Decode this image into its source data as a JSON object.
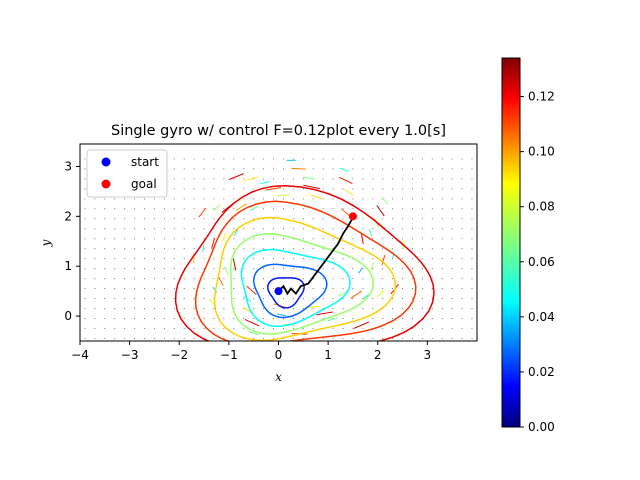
{
  "chart_data": {
    "type": "line",
    "title": "Single gyro w/ control F=0.12plot every 1.0[s]",
    "xlabel": "x",
    "ylabel": "y",
    "xlim": [
      -4,
      4
    ],
    "ylim": [
      -0.5,
      3.45
    ],
    "xticks": [
      -4,
      -3,
      -2,
      -1,
      0,
      1,
      2,
      3
    ],
    "yticks": [
      0,
      1,
      2,
      3
    ],
    "grid": false,
    "legend_position": "top-left",
    "legend": [
      {
        "label": "start",
        "color": "#0000ff"
      },
      {
        "label": "goal",
        "color": "#ff0000"
      }
    ],
    "points": {
      "start": {
        "x": 0.0,
        "y": 0.5
      },
      "goal": {
        "x": 1.5,
        "y": 2.0
      }
    },
    "trajectory": {
      "color": "#000000",
      "x": [
        0.0,
        0.1,
        0.18,
        0.25,
        0.35,
        0.45,
        0.6,
        0.75,
        0.9,
        1.05,
        1.2,
        1.3,
        1.4,
        1.47,
        1.5
      ],
      "y": [
        0.5,
        0.6,
        0.45,
        0.55,
        0.45,
        0.6,
        0.65,
        0.85,
        1.05,
        1.25,
        1.45,
        1.65,
        1.8,
        1.92,
        2.0
      ]
    },
    "colorbar": {
      "colormap": "jet",
      "min": 0.0,
      "max": 0.134,
      "ticks": [
        0.0,
        0.02,
        0.04,
        0.06,
        0.08,
        0.1,
        0.12
      ],
      "tick_labels": [
        "0.00",
        "0.02",
        "0.04",
        "0.06",
        "0.08",
        "0.10",
        "0.12"
      ]
    },
    "contour_levels": [
      0.02,
      0.03,
      0.05,
      0.07,
      0.09,
      0.11,
      0.12
    ],
    "contour_centers": {
      "x": 0.15,
      "y": 0.5
    },
    "quiver_field": {
      "x_range": [
        -3.9,
        3.9
      ],
      "y_range": [
        -0.45,
        3.15
      ],
      "spacing": 0.2
    }
  },
  "colors": {
    "axes": "#000000",
    "background": "#ffffff"
  }
}
